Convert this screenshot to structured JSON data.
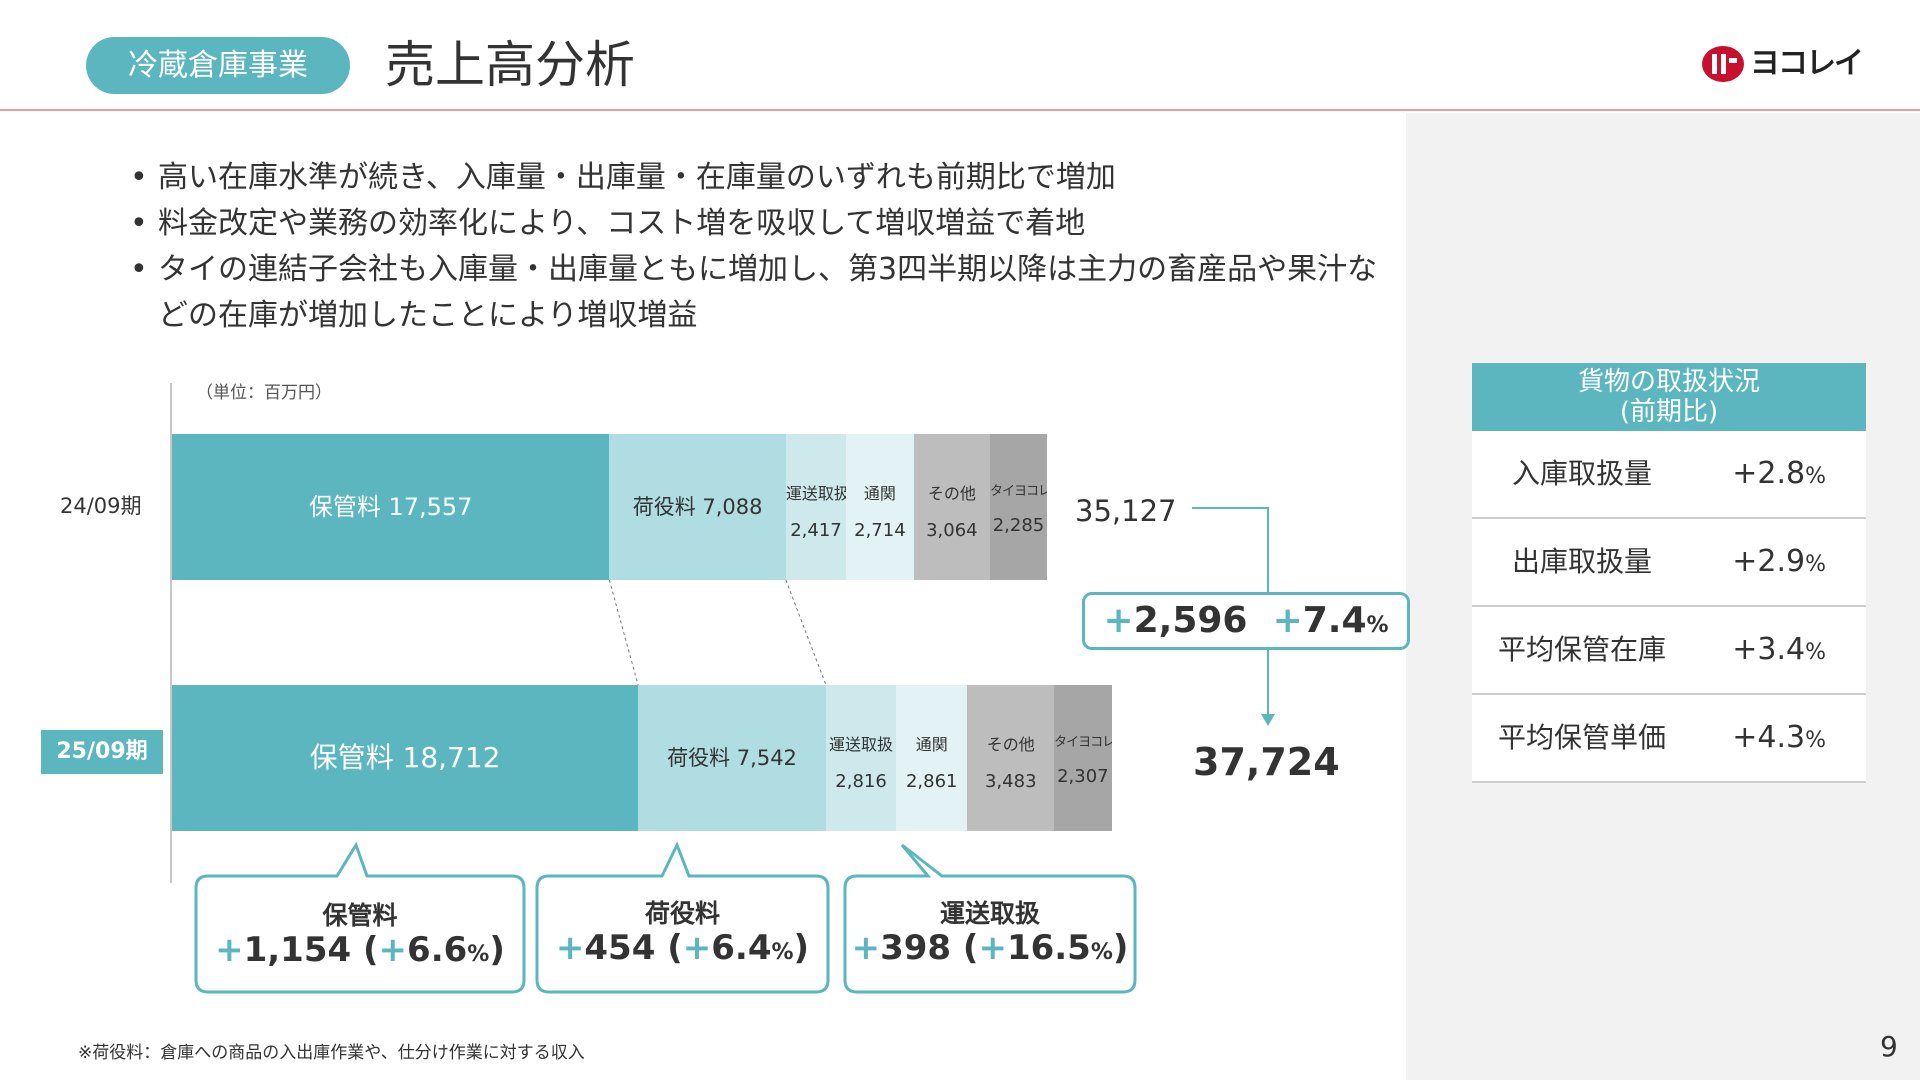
{
  "header": {
    "category": "冷蔵倉庫事業",
    "title": "売上高分析",
    "logo_text": "ヨコレイ"
  },
  "bullets": [
    "高い在庫水準が続き、入庫量・出庫量・在庫量のいずれも前期比で増加",
    "料金改定や業務の効率化により、コスト増を吸収して増収増益で着地",
    "タイの連結子会社も入庫量・出庫量ともに増加し、第3四半期以降は主力の畜産品や果汁などの在庫が増加したことにより増収増益"
  ],
  "chart_data": {
    "type": "bar",
    "orientation": "horizontal-stacked",
    "unit_label": "（単位：百万円）",
    "categories": [
      "24/09期",
      "25/09期"
    ],
    "series": [
      {
        "name": "保管料",
        "values": [
          17557,
          18712
        ]
      },
      {
        "name": "荷役料",
        "values": [
          7088,
          7542
        ]
      },
      {
        "name": "運送取扱",
        "values": [
          2417,
          2816
        ]
      },
      {
        "name": "通関",
        "values": [
          2714,
          2861
        ]
      },
      {
        "name": "その他",
        "values": [
          3064,
          3483
        ]
      },
      {
        "name": "タイヨコレイ",
        "values": [
          2285,
          2307
        ]
      }
    ],
    "value_labels": [
      [
        "17,557",
        "7,088",
        "2,417",
        "2,714",
        "3,064",
        "2,285"
      ],
      [
        "18,712",
        "7,542",
        "2,816",
        "2,861",
        "3,483",
        "2,307"
      ]
    ],
    "totals": [
      "35,127",
      "37,724"
    ],
    "difference": {
      "abs": "2,596",
      "pct": "7.4",
      "pct_unit": "%"
    },
    "colors": [
      "#5bb6bf",
      "#b0dde1",
      "#cde9ec",
      "#e3f3f5",
      "#bdbdbd",
      "#a6a6a6"
    ]
  },
  "callouts": [
    {
      "title": "保管料",
      "abs": "1,154",
      "pct": "6.6"
    },
    {
      "title": "荷役料",
      "abs": "454",
      "pct": "6.4"
    },
    {
      "title": "運送取扱",
      "abs": "398",
      "pct": "16.5"
    }
  ],
  "table": {
    "title_line1": "貨物の取扱状況",
    "title_line2": "(前期比)",
    "rows": [
      {
        "label": "入庫取扱量",
        "value": "+2.8",
        "unit": "%"
      },
      {
        "label": "出庫取扱量",
        "value": "+2.9",
        "unit": "%"
      },
      {
        "label": "平均保管在庫",
        "value": "+3.4",
        "unit": "%"
      },
      {
        "label": "平均保管単価",
        "value": "+4.3",
        "unit": "%"
      }
    ]
  },
  "footnote": "※荷役料：倉庫への商品の入出庫作業や、仕分け作業に対する収入",
  "page_number": "9"
}
